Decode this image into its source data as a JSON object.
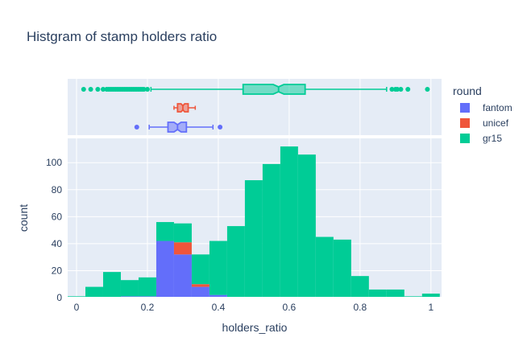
{
  "chart_data": {
    "type": "histogram",
    "title": "Histgram of stamp holders ratio",
    "xlabel": "holders_ratio",
    "ylabel": "count",
    "xlim": [
      -0.025,
      1.03
    ],
    "ylim": [
      0,
      118
    ],
    "x_ticks": [
      "0",
      "0.2",
      "0.4",
      "0.6",
      "0.8",
      "1"
    ],
    "x_tick_values": [
      0,
      0.2,
      0.4,
      0.6,
      0.8,
      1.0
    ],
    "y_ticks": [
      "0",
      "20",
      "40",
      "60",
      "80",
      "100"
    ],
    "y_tick_values": [
      0,
      20,
      40,
      60,
      80,
      100
    ],
    "grid": true,
    "barmode": "stack",
    "legend_placement": "right",
    "legend_title": "round",
    "bin_width": 0.05,
    "bin_starts": [
      -0.025,
      0.025,
      0.075,
      0.125,
      0.175,
      0.225,
      0.275,
      0.325,
      0.375,
      0.425,
      0.475,
      0.525,
      0.575,
      0.625,
      0.675,
      0.725,
      0.775,
      0.825,
      0.875,
      0.925,
      0.975
    ],
    "series": [
      {
        "name": "fantom",
        "color": "#636efa",
        "values": [
          0,
          0,
          0,
          1,
          1,
          42,
          32,
          8,
          2,
          0,
          0,
          0,
          0,
          0,
          0,
          0,
          0,
          0,
          0,
          0,
          0
        ]
      },
      {
        "name": "unicef",
        "color": "#ef553b",
        "values": [
          0,
          0,
          0,
          0,
          0,
          0,
          9,
          2,
          0,
          0,
          0,
          0,
          0,
          0,
          0,
          0,
          0,
          0,
          0,
          0,
          0
        ]
      },
      {
        "name": "gr15",
        "color": "#00cc96",
        "values": [
          1,
          8,
          19,
          12,
          14,
          14,
          14,
          22,
          40,
          53,
          87,
          99,
          112,
          106,
          45,
          43,
          16,
          6,
          6,
          1,
          3
        ]
      }
    ],
    "boxplots": [
      {
        "name": "fantom",
        "color": "#636efa",
        "fill": "rgba(99,110,250,0.5)",
        "min": 0.205,
        "q1": 0.258,
        "median": 0.285,
        "q3": 0.31,
        "max": 0.385,
        "notch_low": 0.275,
        "notch_high": 0.295,
        "outliers": [
          0.17,
          0.405
        ]
      },
      {
        "name": "unicef",
        "color": "#ef553b",
        "fill": "rgba(239,85,59,0.5)",
        "min": 0.275,
        "q1": 0.285,
        "median": 0.3,
        "q3": 0.315,
        "max": 0.335,
        "notch_low": 0.295,
        "notch_high": 0.305,
        "outliers": []
      },
      {
        "name": "gr15",
        "color": "#00cc96",
        "fill": "rgba(0,204,150,0.5)",
        "min": 0.21,
        "q1": 0.47,
        "median": 0.57,
        "q3": 0.645,
        "max": 0.875,
        "notch_low": 0.555,
        "notch_high": 0.585,
        "outliers": [
          0.02,
          0.04,
          0.06,
          0.075,
          0.085,
          0.09,
          0.095,
          0.1,
          0.105,
          0.11,
          0.115,
          0.12,
          0.125,
          0.13,
          0.135,
          0.14,
          0.145,
          0.15,
          0.155,
          0.16,
          0.165,
          0.17,
          0.175,
          0.18,
          0.185,
          0.19,
          0.2,
          0.89,
          0.9,
          0.905,
          0.915,
          0.935,
          0.99
        ]
      }
    ]
  }
}
